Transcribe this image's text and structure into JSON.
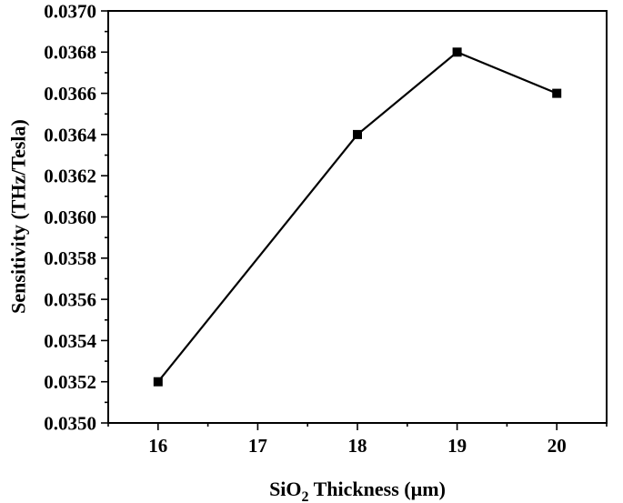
{
  "chart_data": {
    "type": "line",
    "title": "",
    "xlabel": {
      "main": "SiO",
      "sub": "2",
      "rest": " Thickness (µm)"
    },
    "ylabel": "Sensitivity (THz/Tesla)",
    "xlim": [
      15.5,
      20.5
    ],
    "ylim": [
      0.035,
      0.037
    ],
    "x_ticks": [
      "16",
      "17",
      "18",
      "19",
      "20"
    ],
    "y_ticks": [
      "0.0350",
      "0.0352",
      "0.0354",
      "0.0356",
      "0.0358",
      "0.0360",
      "0.0362",
      "0.0364",
      "0.0366",
      "0.0368",
      "0.0370"
    ],
    "grid": false,
    "series": [
      {
        "x": [
          16,
          18,
          19,
          20
        ],
        "values": [
          0.0352,
          0.0364,
          0.0368,
          0.0366
        ],
        "color": "#000000",
        "marker": "square"
      }
    ]
  }
}
